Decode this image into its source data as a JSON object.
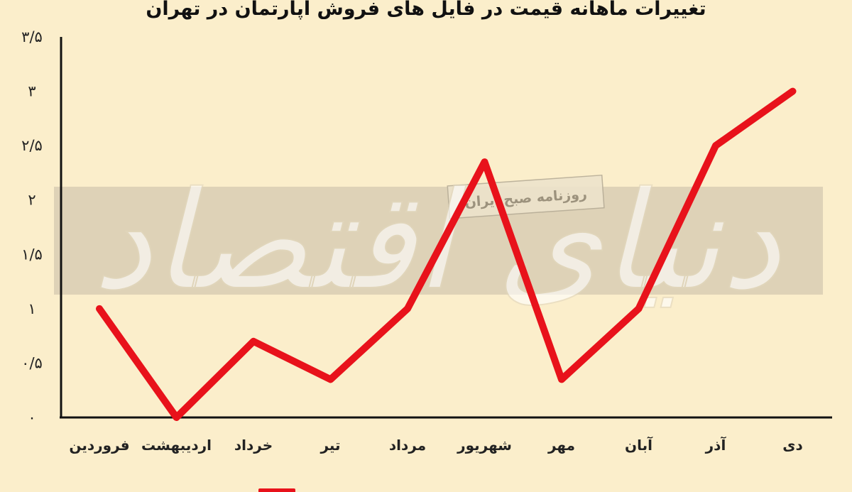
{
  "chart_data": {
    "type": "line",
    "title": "تغییرات ماهانه قیمت در فایل های فروش آپارتمان در تهران",
    "categories": [
      "فروردین",
      "اردیبهشت",
      "خرداد",
      "تیر",
      "مرداد",
      "شهریور",
      "مهر",
      "آبان",
      "آذر",
      "دی"
    ],
    "series": [
      {
        "values": [
          1.0,
          0.0,
          0.7,
          0.35,
          1.0,
          2.35,
          0.35,
          1.0,
          2.5,
          3.0
        ]
      }
    ],
    "yticks": [
      "۰",
      "۰/۵",
      "۱",
      "۱/۵",
      "۲",
      "۲/۵",
      "۳",
      "۳/۵"
    ],
    "ylim": [
      0,
      3.5
    ],
    "grid": false,
    "legend": "bottom",
    "colors": {
      "line": "#e8121b",
      "axis": "#111111",
      "background": "#fbeecb"
    }
  },
  "watermark": {
    "brand": "دنیای اقتصاد",
    "tagline": "روزنامه صبح ایران"
  }
}
